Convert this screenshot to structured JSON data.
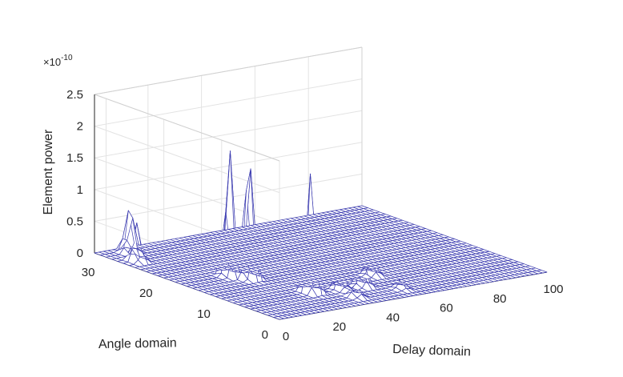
{
  "chart_data": {
    "type": "surface",
    "xlabel": "Delay domain",
    "ylabel": "Angle domain",
    "zlabel": "Element power",
    "exponent_label": "×10",
    "exponent_value": "-10",
    "grid": true,
    "xlim": [
      0,
      100
    ],
    "ylim": [
      0,
      32
    ],
    "zlim": [
      0,
      2.5
    ],
    "x_ticks": [
      "0",
      "20",
      "40",
      "60",
      "80",
      "100"
    ],
    "y_ticks": [
      "0",
      "10",
      "20",
      "30"
    ],
    "z_ticks": [
      "0",
      "0.5",
      "1",
      "1.5",
      "2",
      "2.5"
    ],
    "surface_color": "#ffffff",
    "mesh_color": "#3b3bb0",
    "peaks": [
      {
        "delay": 5,
        "angle": 27,
        "power": 0.6
      },
      {
        "delay": 9,
        "angle": 30,
        "power": 0.8
      },
      {
        "delay": 18,
        "angle": 17,
        "power": 2.05
      },
      {
        "delay": 21,
        "angle": 15,
        "power": 2.05
      },
      {
        "delay": 27,
        "angle": 7,
        "power": 1.95
      },
      {
        "delay": 36,
        "angle": 6,
        "power": 0.4
      },
      {
        "delay": 44,
        "angle": 6,
        "power": 0.5
      },
      {
        "delay": 54,
        "angle": 9,
        "power": 0.35
      },
      {
        "delay": 35,
        "angle": 3,
        "power": 0.25
      },
      {
        "delay": 52,
        "angle": 3,
        "power": 0.15
      }
    ]
  }
}
